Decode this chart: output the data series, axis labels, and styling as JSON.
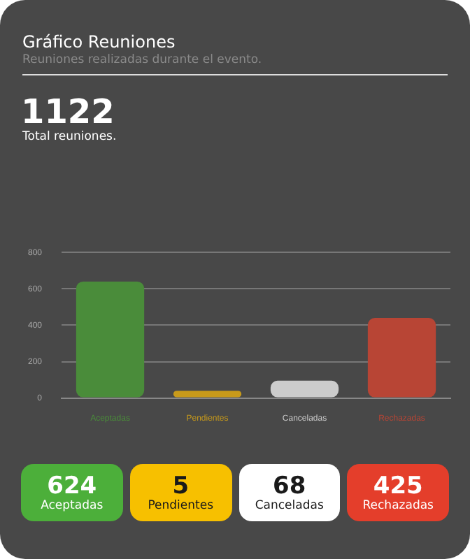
{
  "chart_data": [
    {
      "type": "bar",
      "title": "Gráfico Reuniones",
      "subtitle": "Reuniones realizadas durante el evento.",
      "annotations": [
        "1122",
        "Total reuniones."
      ],
      "categories": [
        "Aceptadas",
        "Pendientes",
        "Canceladas",
        "Rechazadas"
      ],
      "values": [
        640,
        40,
        95,
        440
      ],
      "colors": [
        "#4a8c3a",
        "#c89a1a",
        "#cccccc",
        "#b84535"
      ],
      "ylim": [
        0,
        800
      ],
      "yticks": [
        0,
        200,
        400,
        600,
        800
      ],
      "grid": "y",
      "legend": false
    },
    {
      "type": "other",
      "categories": [
        "Aceptadas",
        "Pendientes",
        "Canceladas",
        "Rechazadas"
      ],
      "values": [
        624,
        5,
        68,
        425
      ],
      "colors": [
        "#4caf3a",
        "#f7c000",
        "#ffffff",
        "#e43e2b"
      ],
      "data_labels": true
    }
  ]
}
